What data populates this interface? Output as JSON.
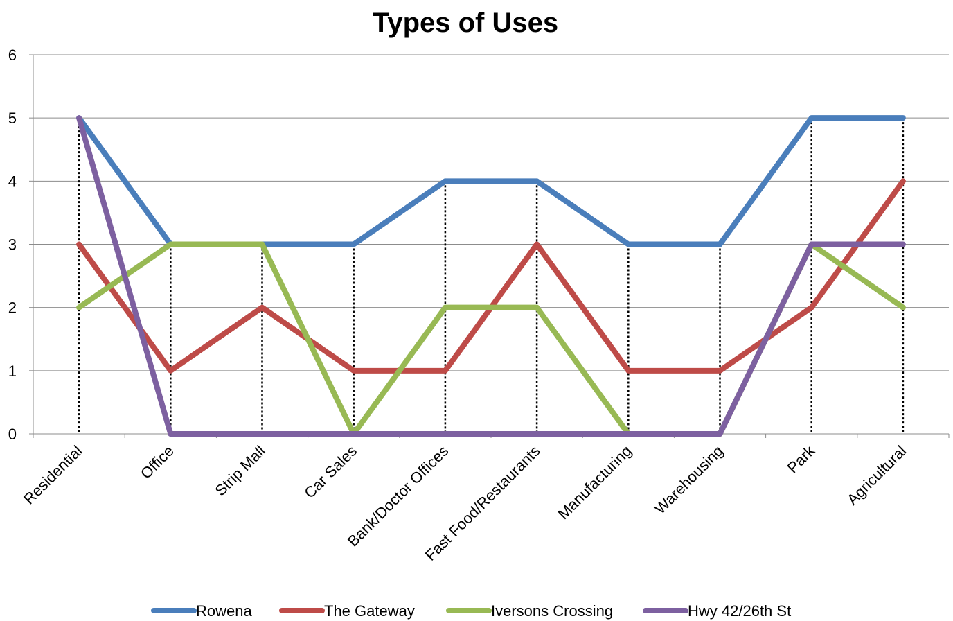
{
  "chart_data": {
    "type": "line",
    "title": "Types of Uses",
    "xlabel": "",
    "ylabel": "",
    "ylim": [
      0,
      6
    ],
    "yticks": [
      "0",
      "1",
      "2",
      "3",
      "4",
      "5",
      "6"
    ],
    "grid": true,
    "drop_lines": true,
    "legend_position": "bottom",
    "categories": [
      "Residential",
      "Office",
      "Strip Mall",
      "Car Sales",
      "Bank/Doctor Offices",
      "Fast Food/Restaurants",
      "Manufacturing",
      "Warehousing",
      "Park",
      "Agricultural"
    ],
    "series": [
      {
        "name": "Rowena",
        "color": "#4a7ebb",
        "values": [
          5,
          3,
          3,
          3,
          4,
          4,
          3,
          3,
          5,
          5
        ]
      },
      {
        "name": "The Gateway",
        "color": "#be4b48",
        "values": [
          3,
          1,
          2,
          1,
          1,
          3,
          1,
          1,
          2,
          4
        ]
      },
      {
        "name": "Iversons Crossing",
        "color": "#98b954",
        "values": [
          2,
          3,
          3,
          0,
          2,
          2,
          0,
          0,
          3,
          2
        ]
      },
      {
        "name": "Hwy 42/26th St",
        "color": "#7d60a0",
        "values": [
          5,
          0,
          0,
          0,
          0,
          0,
          0,
          0,
          3,
          3
        ]
      }
    ]
  }
}
